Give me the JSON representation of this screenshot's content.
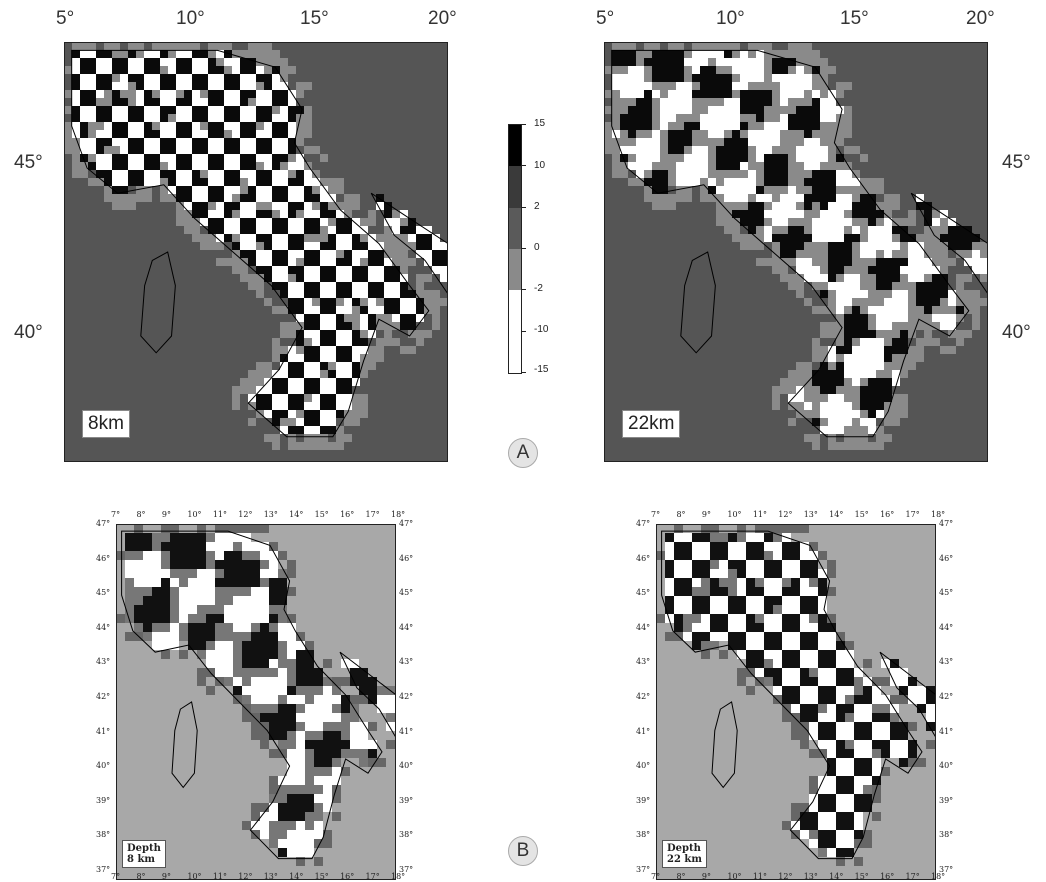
{
  "panel_a": {
    "label": "A",
    "lon_ticks": [
      "5°",
      "10°",
      "15°",
      "20°"
    ],
    "lat_ticks": [
      "45°",
      "40°"
    ],
    "maps": [
      {
        "depth_label": "8km",
        "pattern": "checker"
      },
      {
        "depth_label": "22km",
        "pattern": "smeared"
      }
    ],
    "colorbar": {
      "ticks": [
        "15",
        "10",
        "2",
        "0",
        "-2",
        "-10",
        "-15"
      ],
      "colors": [
        "#000000",
        "#3a3a3a",
        "#5a5a5a",
        "#8a8a8a",
        "#ffffff",
        "#ffffff"
      ]
    },
    "colors": {
      "background": "#555555",
      "ring": "#8a8a8a",
      "positive": "#0a0a0a",
      "negative": "#ffffff"
    }
  },
  "panel_b": {
    "label": "B",
    "lon_ticks": [
      "7°",
      "8°",
      "9°",
      "10°",
      "11°",
      "12°",
      "13°",
      "14°",
      "15°",
      "16°",
      "17°",
      "18°"
    ],
    "lat_ticks": [
      "47°",
      "46°",
      "45°",
      "44°",
      "43°",
      "42°",
      "41°",
      "40°",
      "39°",
      "38°",
      "37°"
    ],
    "maps": [
      {
        "depth_label_line1": "Depth",
        "depth_label_line2": "8 km",
        "pattern": "smeared"
      },
      {
        "depth_label_line1": "Depth",
        "depth_label_line2": "22 km",
        "pattern": "checker"
      }
    ],
    "colors": {
      "background": "#a8a8a8",
      "positive": "#111111",
      "negative": "#ffffff"
    }
  }
}
